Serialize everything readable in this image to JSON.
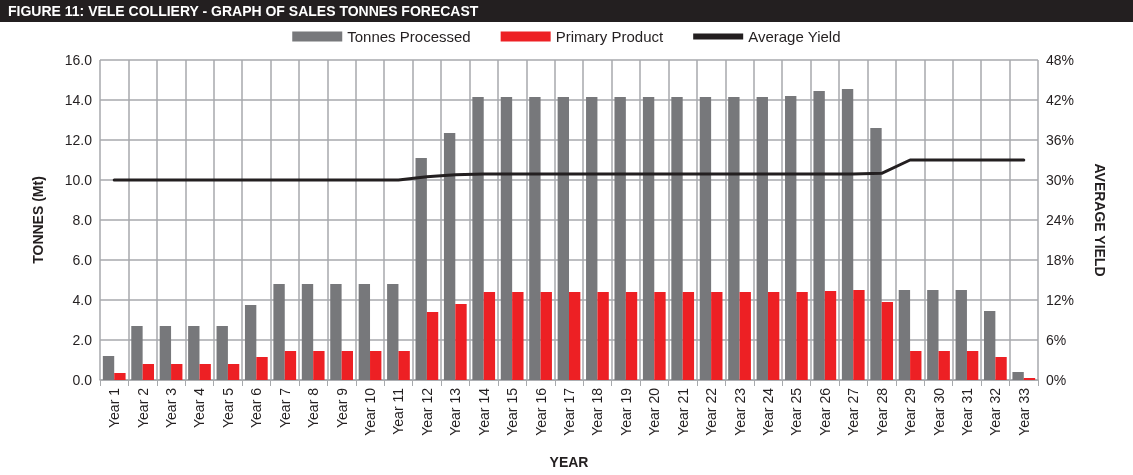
{
  "chart_data": {
    "type": "bar",
    "title": "FIGURE 11: VELE COLLIERY - GRAPH OF SALES TONNES FORECAST",
    "xlabel": "YEAR",
    "ylabel": "TONNES (Mt)",
    "y2label": "AVERAGE YIELD",
    "categories": [
      "Year 1",
      "Year 2",
      "Year 3",
      "Year 4",
      "Year 5",
      "Year 6",
      "Year 7",
      "Year 8",
      "Year 9",
      "Year 10",
      "Year 11",
      "Year 12",
      "Year 13",
      "Year 14",
      "Year 15",
      "Year 16",
      "Year 17",
      "Year 18",
      "Year 19",
      "Year 20",
      "Year 21",
      "Year 22",
      "Year 23",
      "Year 24",
      "Year 25",
      "Year 26",
      "Year 27",
      "Year 28",
      "Year 29",
      "Year 30",
      "Year 31",
      "Year 32",
      "Year 33"
    ],
    "series": [
      {
        "name": "Tonnes Processed",
        "color": "#77787b",
        "values": [
          1.2,
          2.7,
          2.7,
          2.7,
          2.7,
          3.75,
          4.8,
          4.8,
          4.8,
          4.8,
          4.8,
          11.1,
          12.35,
          14.15,
          14.15,
          14.15,
          14.15,
          14.15,
          14.15,
          14.15,
          14.15,
          14.15,
          14.15,
          14.15,
          14.2,
          14.45,
          14.55,
          12.6,
          4.5,
          4.5,
          4.5,
          3.45,
          0.4
        ]
      },
      {
        "name": "Primary Product",
        "color": "#ed2024",
        "values": [
          0.35,
          0.8,
          0.8,
          0.8,
          0.8,
          1.15,
          1.45,
          1.45,
          1.45,
          1.45,
          1.45,
          3.4,
          3.8,
          4.4,
          4.4,
          4.4,
          4.4,
          4.4,
          4.4,
          4.4,
          4.4,
          4.4,
          4.4,
          4.4,
          4.4,
          4.45,
          4.5,
          3.9,
          1.45,
          1.45,
          1.45,
          1.15,
          0.1
        ]
      },
      {
        "name": "Average Yield",
        "type": "line",
        "axis": "y2",
        "color": "#231f20",
        "values": [
          30,
          30,
          30,
          30,
          30,
          30,
          30,
          30,
          30,
          30,
          30,
          30.5,
          30.8,
          30.9,
          30.9,
          30.9,
          30.9,
          30.9,
          30.9,
          30.9,
          30.9,
          30.9,
          30.9,
          30.9,
          30.9,
          30.9,
          30.9,
          31,
          33,
          33,
          33,
          33,
          33
        ]
      }
    ],
    "ylim": [
      0,
      16
    ],
    "yticks": [
      {
        "value": 0,
        "label": "0.0"
      },
      {
        "value": 2,
        "label": "2.0"
      },
      {
        "value": 4,
        "label": "4.0"
      },
      {
        "value": 6,
        "label": "6.0"
      },
      {
        "value": 8,
        "label": "8.0"
      },
      {
        "value": 10,
        "label": "10.0"
      },
      {
        "value": 12,
        "label": "12.0"
      },
      {
        "value": 14,
        "label": "14.0"
      },
      {
        "value": 16,
        "label": "16.0"
      }
    ],
    "y2lim": [
      0,
      48
    ],
    "y2ticks": [
      {
        "value": 0,
        "label": "0%"
      },
      {
        "value": 6,
        "label": "6%"
      },
      {
        "value": 12,
        "label": "12%"
      },
      {
        "value": 18,
        "label": "18%"
      },
      {
        "value": 24,
        "label": "24%"
      },
      {
        "value": 30,
        "label": "30%"
      },
      {
        "value": 36,
        "label": "36%"
      },
      {
        "value": 42,
        "label": "42%"
      },
      {
        "value": 48,
        "label": "48%"
      }
    ],
    "grid": true,
    "legend": "top",
    "marker": "none",
    "line_style": "solid"
  }
}
